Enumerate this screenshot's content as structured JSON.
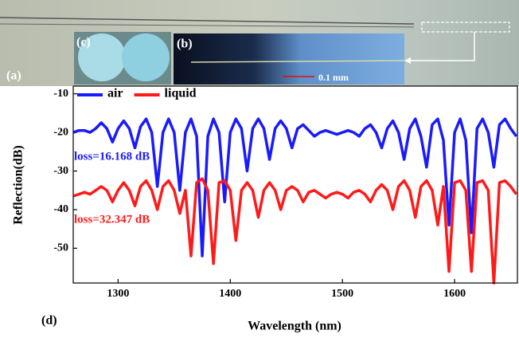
{
  "chart_data": {
    "type": "line",
    "x_label": "Wavelength (nm)",
    "y_label": "Reflection(dB)",
    "panel_labels": [
      "(a)",
      "(b)",
      "(c)",
      "(d)"
    ],
    "scale_bar_label": "0.1 mm",
    "annotations": [
      {
        "text": "loss=16.168 dB",
        "color": "#1a1aff"
      },
      {
        "text": "loss=32.347 dB",
        "color": "#ff1a1a"
      }
    ],
    "xlim": [
      1260,
      1656
    ],
    "xticks": [
      1300,
      1400,
      1500,
      1600
    ],
    "ylim": [
      -59,
      -8
    ],
    "yticks": [
      -10,
      -20,
      -30,
      -40,
      -50
    ],
    "legend": "upper left",
    "x": [
      1260,
      1265,
      1270,
      1275,
      1280,
      1285,
      1290,
      1295,
      1300,
      1305,
      1310,
      1315,
      1320,
      1325,
      1330,
      1335,
      1340,
      1345,
      1350,
      1355,
      1360,
      1365,
      1370,
      1375,
      1380,
      1385,
      1390,
      1395,
      1400,
      1405,
      1410,
      1415,
      1420,
      1425,
      1430,
      1435,
      1440,
      1445,
      1450,
      1455,
      1460,
      1465,
      1470,
      1475,
      1480,
      1485,
      1490,
      1495,
      1500,
      1505,
      1510,
      1515,
      1520,
      1525,
      1530,
      1535,
      1540,
      1545,
      1550,
      1555,
      1560,
      1565,
      1570,
      1575,
      1580,
      1585,
      1590,
      1595,
      1600,
      1605,
      1610,
      1615,
      1620,
      1625,
      1630,
      1635,
      1640,
      1645,
      1650,
      1655
    ],
    "series": [
      {
        "name": "air",
        "color": "#1a1aff",
        "values": [
          -20,
          -19.5,
          -19.5,
          -20,
          -19,
          -17.5,
          -19,
          -22.5,
          -19,
          -17,
          -19,
          -24,
          -18.5,
          -16.5,
          -20,
          -34,
          -20,
          -16.5,
          -20,
          -35,
          -20,
          -16.5,
          -21,
          -52,
          -21,
          -16.5,
          -20,
          -38,
          -20,
          -16.5,
          -19,
          -30,
          -19,
          -16.5,
          -19,
          -27,
          -19,
          -17,
          -19,
          -24,
          -19,
          -18,
          -19.5,
          -21,
          -20,
          -19.5,
          -20,
          -20.5,
          -20,
          -19.5,
          -20,
          -21,
          -19,
          -18,
          -20,
          -24,
          -19,
          -17,
          -20,
          -27,
          -19,
          -16.5,
          -21,
          -29,
          -18,
          -16.5,
          -22,
          -44,
          -20,
          -16.5,
          -22,
          -46,
          -19,
          -16.5,
          -20,
          -29,
          -18,
          -16.5,
          -19,
          -21
        ]
      },
      {
        "name": "liquid",
        "color": "#ff1a1a",
        "values": [
          -36.5,
          -36,
          -35.5,
          -36,
          -35,
          -34,
          -35,
          -38,
          -35,
          -33,
          -35,
          -39,
          -34,
          -32.5,
          -35,
          -40,
          -34,
          -32.5,
          -35,
          -41,
          -35,
          -52,
          -33,
          -32,
          -35,
          -54,
          -33,
          -32.5,
          -35,
          -48,
          -35,
          -33,
          -35,
          -42,
          -35,
          -33,
          -35,
          -40,
          -35,
          -34,
          -35,
          -38,
          -35.5,
          -35,
          -36,
          -37,
          -36,
          -35.5,
          -36,
          -37,
          -35.5,
          -35,
          -36,
          -38,
          -35,
          -33.5,
          -35,
          -40,
          -34,
          -32.5,
          -35,
          -42,
          -34,
          -32.5,
          -35,
          -44,
          -34,
          -56,
          -33,
          -32.5,
          -35,
          -56,
          -33,
          -32.5,
          -35,
          -59,
          -33,
          -32.5,
          -34,
          -36
        ]
      }
    ]
  }
}
